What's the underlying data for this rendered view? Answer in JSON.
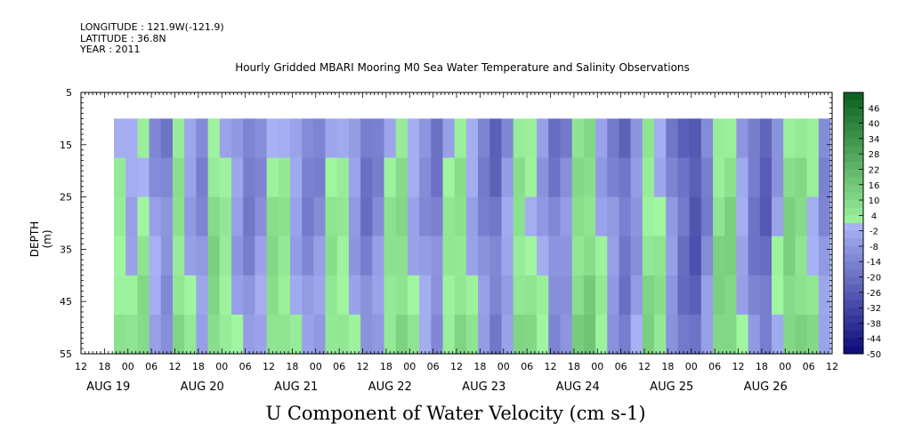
{
  "header": {
    "longitude": "LONGITUDE : 121.9W(-121.9)",
    "latitude": "LATITUDE : 36.8N",
    "year": "YEAR : 2011",
    "title": "Hourly Gridded MBARI Mooring M0 Sea Water Temperature and Salinity Observations"
  },
  "chart_data": {
    "type": "heatmap",
    "title": "Hourly Gridded MBARI Mooring M0 Sea Water Temperature and Salinity Observations",
    "xlabel": "",
    "ylabel": "DEPTH (m)",
    "variable_label": "U Component of Water Velocity (cm s-1)",
    "y_range": [
      5,
      55
    ],
    "y_inverted": true,
    "y_ticks": [
      "5",
      "15",
      "25",
      "35",
      "45",
      "55"
    ],
    "data_depth_range": [
      10,
      55
    ],
    "x_hour_ticks": [
      "12",
      "18",
      "00",
      "06",
      "12",
      "18",
      "00",
      "06",
      "12",
      "18",
      "00",
      "06",
      "12",
      "18",
      "00",
      "06",
      "12",
      "18",
      "00",
      "06",
      "12",
      "18",
      "00",
      "06",
      "12",
      "18",
      "00",
      "06",
      "12",
      "18",
      "00",
      "06",
      "12"
    ],
    "x_day_labels": [
      "AUG 19",
      "AUG 20",
      "AUG 21",
      "AUG 22",
      "AUG 23",
      "AUG 24",
      "AUG 25",
      "AUG 26"
    ],
    "colorbar": {
      "labels": [
        "46",
        "40",
        "34",
        "28",
        "22",
        "16",
        "10",
        "4",
        "-2",
        "-8",
        "-14",
        "-20",
        "-26",
        "-32",
        "-38",
        "-44",
        "-50"
      ],
      "range": [
        -50,
        52
      ],
      "step": 3
    },
    "approx_column_values": [
      2,
      -2,
      4,
      -6,
      -12,
      6,
      -4,
      -10,
      8,
      2,
      -6,
      -14,
      -8,
      6,
      4,
      -4,
      -12,
      -10,
      4,
      2,
      -6,
      -16,
      -10,
      4,
      8,
      -2,
      -8,
      -14,
      2,
      6,
      -2,
      -12,
      -18,
      -6,
      6,
      2,
      -4,
      -14,
      -10,
      8,
      10,
      -2,
      -10,
      -18,
      -8,
      6,
      2,
      -10,
      -20,
      -26,
      -12,
      8,
      10,
      -4,
      -16,
      -22,
      -4,
      10,
      8,
      2,
      -10
    ]
  }
}
